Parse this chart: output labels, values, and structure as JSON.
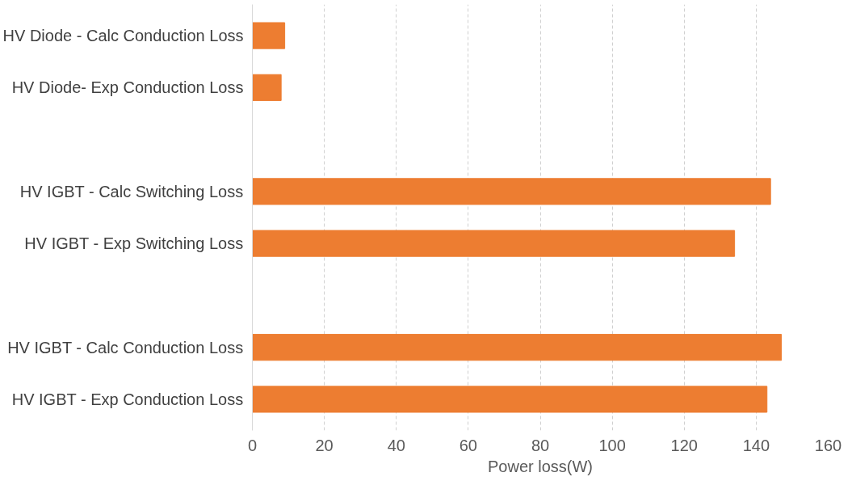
{
  "chart_data": {
    "type": "bar",
    "orientation": "horizontal",
    "xlabel": "Power loss(W)",
    "categories": [
      "HV Diode - Calc Conduction Loss",
      "HV Diode- Exp Conduction Loss",
      null,
      "HV IGBT - Calc Switching Loss",
      "HV IGBT - Exp Switching Loss",
      null,
      "HV IGBT - Calc Conduction Loss",
      "HV IGBT - Exp Conduction Loss"
    ],
    "values": [
      9,
      8,
      null,
      144,
      134,
      null,
      147,
      143
    ],
    "color": "#ed7d31",
    "xlim": [
      0,
      160
    ],
    "xticks": [
      0,
      20,
      40,
      60,
      80,
      100,
      120,
      140,
      160
    ],
    "grid": "x"
  }
}
